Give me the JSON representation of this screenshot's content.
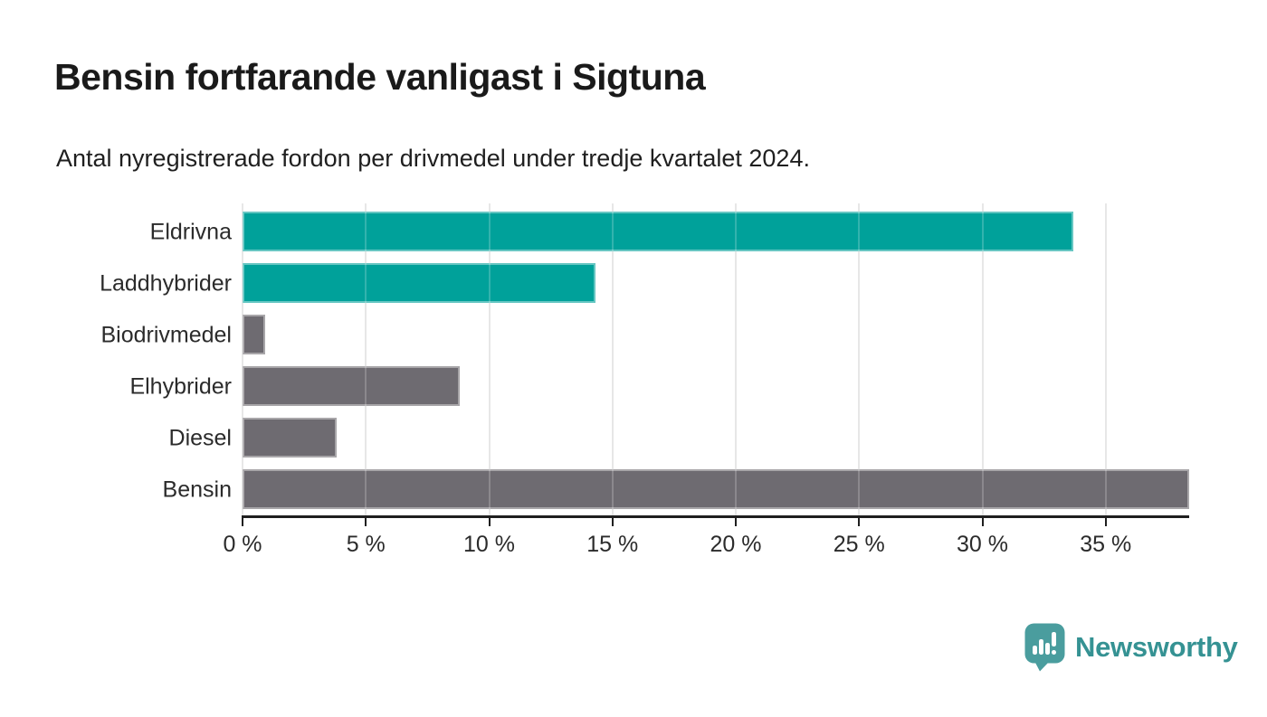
{
  "chart_data": {
    "type": "bar",
    "orientation": "horizontal",
    "title": "Bensin fortfarande vanligast i Sigtuna",
    "subtitle": "Antal nyregistrerade fordon per drivmedel under tredje kvartalet 2024.",
    "categories": [
      "Eldrivna",
      "Laddhybrider",
      "Biodrivmedel",
      "Elhybrider",
      "Diesel",
      "Bensin"
    ],
    "values": [
      33.7,
      14.3,
      0.9,
      8.8,
      3.8,
      38.4
    ],
    "unit": "%",
    "bar_colors": [
      "#00a19a",
      "#00a19a",
      "#6e6b71",
      "#6e6b71",
      "#6e6b71",
      "#6e6b71"
    ],
    "xlabel": "",
    "ylabel": "",
    "xlim": [
      0,
      40
    ],
    "x_ticks": [
      {
        "value": 0,
        "label": "0 %"
      },
      {
        "value": 5,
        "label": "5 %"
      },
      {
        "value": 10,
        "label": "10 %"
      },
      {
        "value": 15,
        "label": "15 %"
      },
      {
        "value": 20,
        "label": "20 %"
      },
      {
        "value": 25,
        "label": "25 %"
      },
      {
        "value": 30,
        "label": "30 %"
      },
      {
        "value": 35,
        "label": "35 %"
      }
    ],
    "grid": "vertical",
    "legend": "none",
    "styles": {
      "gridline_color": "#e1e1e1",
      "axis_color": "#1f1f1f",
      "accent_teal": "#00a19a",
      "neutral_gray": "#6e6b71"
    }
  },
  "branding": {
    "logo_text": "Newsworthy",
    "logo_icon": "newsworthy-pin-barchart-icon",
    "logo_text_color": "#359293",
    "logo_icon_color": "#4a9d9e"
  }
}
